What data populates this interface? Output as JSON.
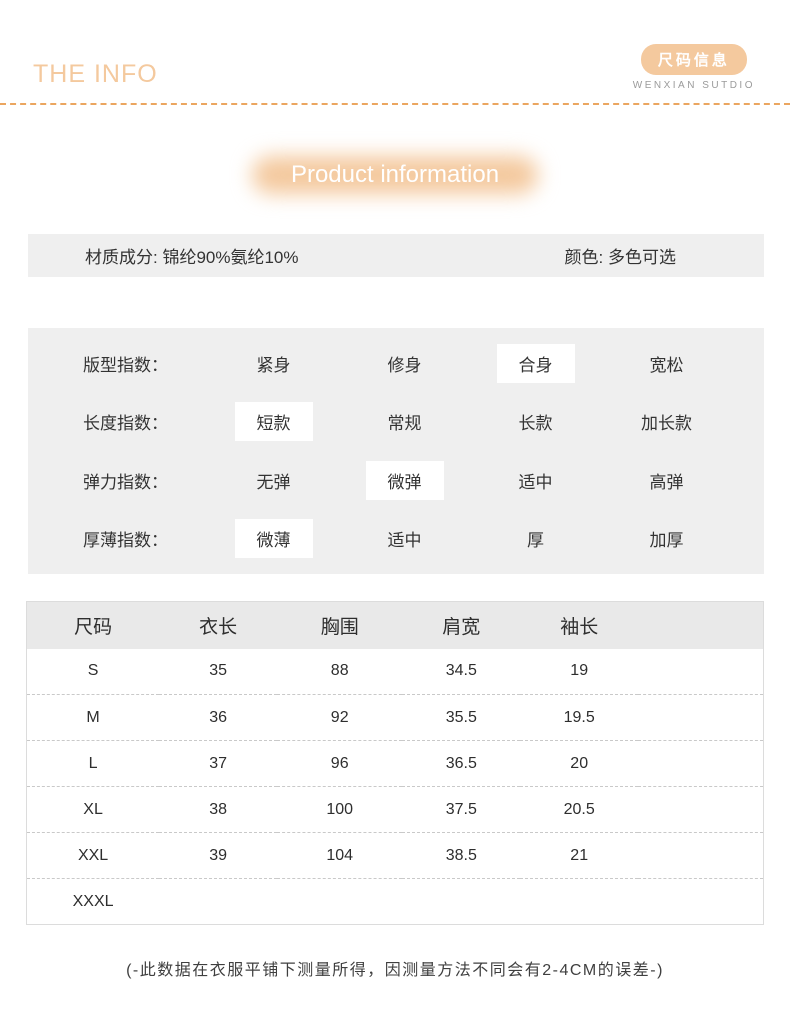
{
  "header": {
    "title": "THE INFO",
    "badge": "尺码信息",
    "brand": "WENXIAN SUTDIO"
  },
  "section_title": "Product information",
  "material_bar": {
    "material": "材质成分: 锦纶90%氨纶10%",
    "color": "颜色: 多色可选"
  },
  "index_rows": [
    {
      "label": "版型指数：",
      "options": [
        "紧身",
        "修身",
        "合身",
        "宽松"
      ],
      "selected": 2
    },
    {
      "label": "长度指数：",
      "options": [
        "短款",
        "常规",
        "长款",
        "加长款"
      ],
      "selected": 0
    },
    {
      "label": "弹力指数：",
      "options": [
        "无弹",
        "微弹",
        "适中",
        "高弹"
      ],
      "selected": 1
    },
    {
      "label": "厚薄指数：",
      "options": [
        "微薄",
        "适中",
        "厚",
        "加厚"
      ],
      "selected": 0
    }
  ],
  "size_table": {
    "headers": [
      "尺码",
      "衣长",
      "胸围",
      "肩宽",
      "袖长"
    ],
    "rows": [
      [
        "S",
        "35",
        "88",
        "34.5",
        "19"
      ],
      [
        "M",
        "36",
        "92",
        "35.5",
        "19.5"
      ],
      [
        "L",
        "37",
        "96",
        "36.5",
        "20"
      ],
      [
        "XL",
        "38",
        "100",
        "37.5",
        "20.5"
      ],
      [
        "XXL",
        "39",
        "104",
        "38.5",
        "21"
      ],
      [
        "XXXL",
        "",
        "",
        "",
        ""
      ]
    ]
  },
  "note": "(-此数据在衣服平铺下测量所得，因测量方法不同会有2-4CM的误差-)",
  "colors": {
    "accent": "#f4c99e",
    "dash": "#eba660",
    "bar-bg": "#efefef",
    "head-bg": "#e9e9e9",
    "border": "#dcdcdc",
    "row-dash": "#c9c9c9",
    "text": "#333333",
    "muted": "#9b9b9b"
  }
}
